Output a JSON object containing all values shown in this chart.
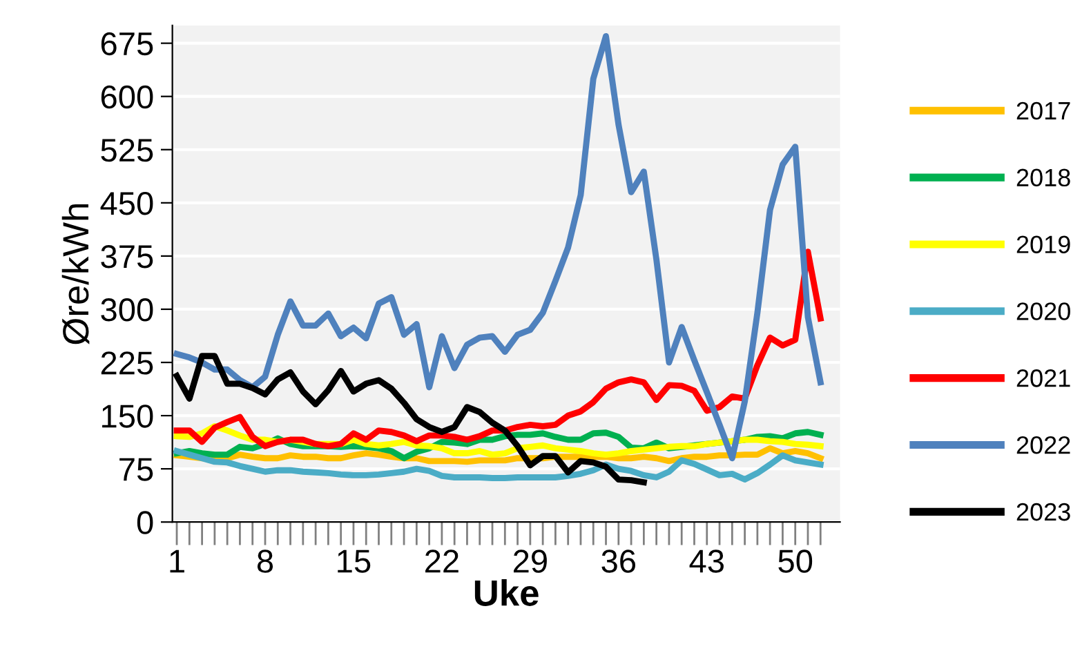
{
  "chart_data": {
    "type": "line",
    "xlabel": "Uke",
    "ylabel": "Øre/kWh",
    "categories": [
      "1",
      null,
      null,
      null,
      null,
      null,
      null,
      "8",
      null,
      null,
      null,
      null,
      null,
      null,
      "15",
      null,
      null,
      null,
      null,
      null,
      null,
      "22",
      null,
      null,
      null,
      null,
      null,
      null,
      "29",
      null,
      null,
      null,
      null,
      null,
      null,
      "36",
      null,
      null,
      null,
      null,
      null,
      null,
      "43",
      null,
      null,
      null,
      null,
      null,
      null,
      "50",
      null,
      null
    ],
    "ylim": [
      0,
      700
    ],
    "yticks": [
      0,
      75,
      150,
      225,
      300,
      375,
      450,
      525,
      600,
      675
    ],
    "grid": "y",
    "legend": "right",
    "marker": "none",
    "line_style": "solid",
    "series": [
      {
        "name": "2017",
        "color": "#ffc000",
        "values": [
          94,
          92,
          90,
          90,
          90,
          95,
          92,
          90,
          90,
          94,
          92,
          92,
          90,
          90,
          94,
          97,
          95,
          92,
          90,
          90,
          86,
          86,
          86,
          85,
          87,
          87,
          87,
          90,
          90,
          90,
          92,
          92,
          92,
          92,
          92,
          90,
          90,
          92,
          90,
          86,
          90,
          92,
          92,
          94,
          94,
          95,
          95,
          104,
          97,
          100,
          97,
          90
        ]
      },
      {
        "name": "2018",
        "color": "#00b050",
        "values": [
          97,
          100,
          97,
          95,
          95,
          106,
          104,
          110,
          118,
          110,
          107,
          107,
          107,
          106,
          107,
          106,
          104,
          100,
          90,
          99,
          104,
          113,
          112,
          110,
          116,
          116,
          121,
          123,
          123,
          125,
          120,
          116,
          116,
          125,
          126,
          120,
          105,
          104,
          112,
          104,
          106,
          108,
          110,
          112,
          114,
          116,
          120,
          121,
          118,
          125,
          127,
          123
        ]
      },
      {
        "name": "2019",
        "color": "#ffff00",
        "values": [
          121,
          120,
          125,
          135,
          129,
          122,
          116,
          116,
          113,
          116,
          113,
          110,
          110,
          110,
          116,
          110,
          108,
          110,
          113,
          108,
          107,
          104,
          97,
          97,
          100,
          95,
          97,
          104,
          106,
          108,
          104,
          102,
          100,
          97,
          95,
          97,
          100,
          102,
          104,
          106,
          107,
          107,
          110,
          112,
          114,
          116,
          116,
          114,
          113,
          110,
          109,
          107
        ]
      },
      {
        "name": "2020",
        "color": "#4bacc6",
        "values": [
          100,
          95,
          90,
          85,
          84,
          79,
          75,
          71,
          73,
          73,
          71,
          70,
          69,
          67,
          66,
          66,
          67,
          69,
          71,
          75,
          72,
          65,
          63,
          63,
          63,
          62,
          62,
          63,
          63,
          63,
          63,
          65,
          68,
          73,
          81,
          75,
          72,
          66,
          63,
          71,
          87,
          82,
          74,
          66,
          68,
          60,
          69,
          81,
          94,
          87,
          84,
          81
        ]
      },
      {
        "name": "2021",
        "color": "#ff0000",
        "values": [
          129,
          129,
          113,
          133,
          141,
          148,
          120,
          107,
          113,
          116,
          116,
          110,
          107,
          110,
          125,
          116,
          129,
          127,
          122,
          114,
          122,
          122,
          120,
          116,
          121,
          129,
          129,
          134,
          137,
          135,
          137,
          150,
          156,
          169,
          188,
          197,
          201,
          197,
          172,
          193,
          192,
          185,
          157,
          162,
          177,
          174,
          221,
          260,
          249,
          257,
          381,
          287
        ]
      },
      {
        "name": "2022",
        "color": "#4f81bd",
        "values": [
          237,
          232,
          225,
          215,
          215,
          200,
          190,
          205,
          264,
          311,
          277,
          277,
          294,
          262,
          274,
          259,
          308,
          317,
          264,
          279,
          190,
          262,
          217,
          250,
          260,
          262,
          240,
          264,
          271,
          295,
          340,
          387,
          461,
          625,
          685,
          560,
          465,
          494,
          370,
          225,
          275,
          228,
          183,
          137,
          90,
          170,
          295,
          440,
          504,
          529,
          289,
          197
        ]
      },
      {
        "name": "2023",
        "color": "#000000",
        "values": [
          206,
          174,
          234,
          234,
          195,
          195,
          189,
          180,
          201,
          211,
          184,
          166,
          186,
          213,
          184,
          195,
          200,
          188,
          168,
          145,
          134,
          127,
          134,
          162,
          155,
          140,
          129,
          107,
          80,
          93,
          93,
          70,
          86,
          84,
          78,
          60,
          59,
          56,
          null,
          null,
          null,
          null,
          null,
          null,
          null,
          null,
          null,
          null,
          null,
          null,
          null,
          null
        ]
      }
    ]
  }
}
